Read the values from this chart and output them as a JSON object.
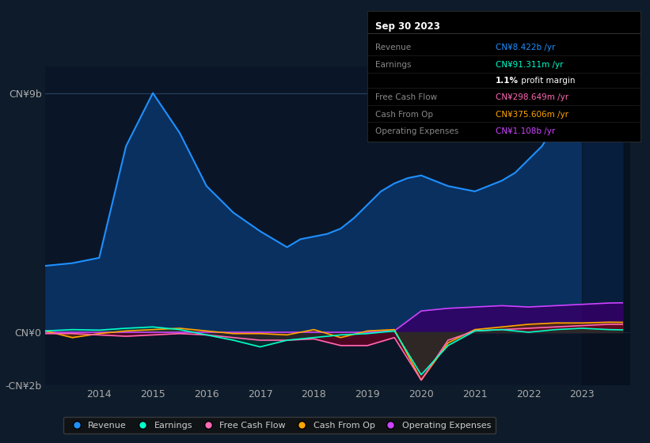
{
  "bg_color": "#0d1b2a",
  "plot_bg_color": "#0a1628",
  "ylim": [
    -2000000000,
    10000000000
  ],
  "series": {
    "revenue": {
      "color": "#1e90ff",
      "fill_color": "#0a3060",
      "label": "Revenue",
      "x": [
        2013.0,
        2013.5,
        2014.0,
        2014.5,
        2015.0,
        2015.5,
        2016.0,
        2016.5,
        2017.0,
        2017.25,
        2017.5,
        2017.75,
        2018.0,
        2018.25,
        2018.5,
        2018.75,
        2019.0,
        2019.25,
        2019.5,
        2019.75,
        2020.0,
        2020.25,
        2020.5,
        2020.75,
        2021.0,
        2021.25,
        2021.5,
        2021.75,
        2022.0,
        2022.25,
        2022.5,
        2022.75,
        2023.0,
        2023.25,
        2023.5,
        2023.75
      ],
      "y": [
        2500000000,
        2600000000,
        2800000000,
        7000000000,
        9000000000,
        7500000000,
        5500000000,
        4500000000,
        3800000000,
        3500000000,
        3200000000,
        3500000000,
        3600000000,
        3700000000,
        3900000000,
        4300000000,
        4800000000,
        5300000000,
        5600000000,
        5800000000,
        5900000000,
        5700000000,
        5500000000,
        5400000000,
        5300000000,
        5500000000,
        5700000000,
        6000000000,
        6500000000,
        7000000000,
        7800000000,
        8000000000,
        8200000000,
        8400000000,
        8500000000,
        8420000000
      ]
    },
    "earnings": {
      "color": "#00ffcc",
      "fill_color": "#004433",
      "label": "Earnings",
      "x": [
        2013.0,
        2013.5,
        2014.0,
        2014.5,
        2015.0,
        2015.5,
        2016.0,
        2016.5,
        2017.0,
        2017.5,
        2018.0,
        2018.5,
        2019.0,
        2019.5,
        2020.0,
        2020.5,
        2021.0,
        2021.5,
        2022.0,
        2022.5,
        2023.0,
        2023.5,
        2023.75
      ],
      "y": [
        50000000,
        100000000,
        80000000,
        150000000,
        200000000,
        100000000,
        -100000000,
        -300000000,
        -550000000,
        -300000000,
        -200000000,
        -100000000,
        -50000000,
        50000000,
        -1600000000,
        -500000000,
        50000000,
        100000000,
        0,
        100000000,
        150000000,
        100000000,
        91000000
      ]
    },
    "free_cash_flow": {
      "color": "#ff69b4",
      "fill_color": "#6b0020",
      "label": "Free Cash Flow",
      "x": [
        2013.0,
        2013.5,
        2014.0,
        2014.5,
        2015.0,
        2015.5,
        2016.0,
        2016.5,
        2017.0,
        2017.5,
        2018.0,
        2018.5,
        2019.0,
        2019.5,
        2020.0,
        2020.5,
        2021.0,
        2021.5,
        2022.0,
        2022.5,
        2023.0,
        2023.5,
        2023.75
      ],
      "y": [
        -50000000,
        -50000000,
        -100000000,
        -150000000,
        -100000000,
        -50000000,
        -100000000,
        -200000000,
        -300000000,
        -300000000,
        -250000000,
        -500000000,
        -500000000,
        -200000000,
        -1800000000,
        -300000000,
        50000000,
        100000000,
        150000000,
        200000000,
        250000000,
        300000000,
        298000000
      ]
    },
    "cash_from_op": {
      "color": "#ffa500",
      "fill_color": "#5a3000",
      "label": "Cash From Op",
      "x": [
        2013.0,
        2013.5,
        2014.0,
        2014.5,
        2015.0,
        2015.5,
        2016.0,
        2016.5,
        2017.0,
        2017.5,
        2018.0,
        2018.5,
        2019.0,
        2019.5,
        2020.0,
        2020.5,
        2021.0,
        2021.5,
        2022.0,
        2022.5,
        2023.0,
        2023.5,
        2023.75
      ],
      "y": [
        50000000,
        -200000000,
        -50000000,
        50000000,
        100000000,
        150000000,
        50000000,
        -50000000,
        -50000000,
        -100000000,
        100000000,
        -200000000,
        50000000,
        100000000,
        -1800000000,
        -400000000,
        100000000,
        200000000,
        300000000,
        350000000,
        350000000,
        380000000,
        375000000
      ]
    },
    "operating_expenses": {
      "color": "#cc44ff",
      "fill_color": "#330066",
      "label": "Operating Expenses",
      "x": [
        2013.0,
        2013.5,
        2014.0,
        2014.5,
        2015.0,
        2015.5,
        2016.0,
        2016.5,
        2017.0,
        2017.5,
        2018.0,
        2018.5,
        2019.0,
        2019.5,
        2020.0,
        2020.5,
        2021.0,
        2021.5,
        2022.0,
        2022.5,
        2023.0,
        2023.5,
        2023.75
      ],
      "y": [
        0,
        0,
        0,
        0,
        0,
        0,
        0,
        0,
        0,
        0,
        0,
        0,
        0,
        50000000,
        800000000,
        900000000,
        950000000,
        1000000000,
        950000000,
        1000000000,
        1050000000,
        1100000000,
        1108000000
      ]
    }
  },
  "legend": [
    {
      "label": "Revenue",
      "color": "#1e90ff"
    },
    {
      "label": "Earnings",
      "color": "#00ffcc"
    },
    {
      "label": "Free Cash Flow",
      "color": "#ff69b4"
    },
    {
      "label": "Cash From Op",
      "color": "#ffa500"
    },
    {
      "label": "Operating Expenses",
      "color": "#cc44ff"
    }
  ],
  "info_box_title": "Sep 30 2023",
  "info_rows": [
    {
      "label": "Revenue",
      "value": "CN¥8.422b /yr",
      "value_color": "#1e90ff"
    },
    {
      "label": "Earnings",
      "value": "CN¥91.311m /yr",
      "value_color": "#00ffcc"
    },
    {
      "label": "",
      "value": "1.1% profit margin",
      "value_color": "#ffffff",
      "bold_prefix": "1.1%"
    },
    {
      "label": "Free Cash Flow",
      "value": "CN¥298.649m /yr",
      "value_color": "#ff69b4"
    },
    {
      "label": "Cash From Op",
      "value": "CN¥375.606m /yr",
      "value_color": "#ffa500"
    },
    {
      "label": "Operating Expenses",
      "value": "CN¥1.108b /yr",
      "value_color": "#cc44ff"
    }
  ],
  "xticks": [
    2014,
    2015,
    2016,
    2017,
    2018,
    2019,
    2020,
    2021,
    2022,
    2023
  ],
  "xtick_labels": [
    "2014",
    "2015",
    "2016",
    "2017",
    "2018",
    "2019",
    "2020",
    "2021",
    "2022",
    "2023"
  ],
  "ytick_vals": [
    9000000000,
    0,
    -2000000000
  ],
  "ytick_labels": [
    "CN¥9b",
    "CN¥0",
    "-CN¥2b"
  ]
}
